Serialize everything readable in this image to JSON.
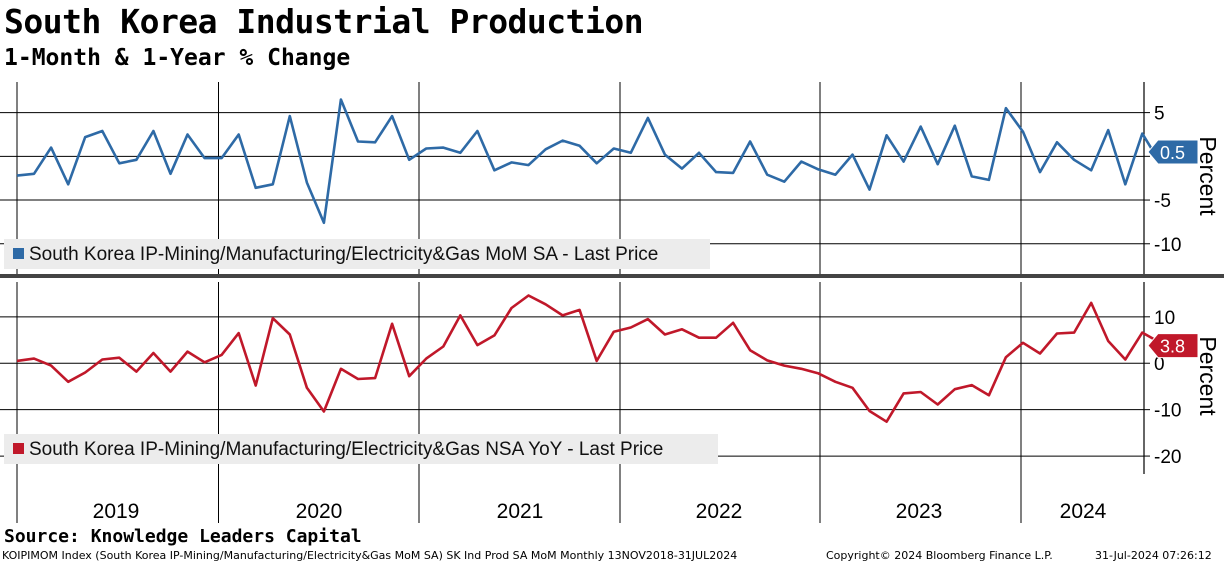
{
  "title": "South Korea Industrial Production",
  "subtitle": "1-Month & 1-Year % Change",
  "source": "Source: Knowledge Leaders Capital",
  "footer": {
    "left": "KOIPIMOM Index (South Korea IP-Mining/Manufacturing/Electricity&Gas MoM SA) SK Ind Prod SA MoM  Monthly 13NOV2018-31JUL2024",
    "middle": "Copyright© 2024 Bloomberg Finance L.P.",
    "right": "31-Jul-2024 07:26:12"
  },
  "colors": {
    "mom": "#2e6aa6",
    "yoy": "#c0182a",
    "grid": "#000000",
    "separator": "#444444"
  },
  "chart_data": [
    {
      "type": "line",
      "name": "mom",
      "title": "1-Month % Change",
      "ylabel": "Percent",
      "ylim": [
        -13,
        8.5
      ],
      "yticks": [
        5,
        0,
        -5,
        -10
      ],
      "grid": true,
      "legend": "South Korea IP-Mining/Manufacturing/Electricity&Gas MoM SA - Last Price",
      "last_value": "0.5",
      "x_start": "2018-11",
      "series": [
        {
          "name": "South Korea IP-Mining/Manufacturing/Electricity&Gas MoM SA",
          "values": [
            -2.2,
            -2.0,
            1.0,
            -3.2,
            2.2,
            2.9,
            -0.8,
            -0.4,
            2.9,
            -2.0,
            2.5,
            -0.2,
            -0.2,
            2.5,
            -3.6,
            -3.2,
            4.6,
            -3.0,
            -7.6,
            6.5,
            1.7,
            1.6,
            4.6,
            -0.4,
            0.9,
            1.0,
            0.4,
            2.9,
            -1.6,
            -0.7,
            -1.0,
            0.8,
            1.8,
            1.2,
            -0.8,
            0.9,
            0.4,
            4.4,
            0.2,
            -1.4,
            0.4,
            -1.8,
            -1.9,
            1.7,
            -2.1,
            -2.9,
            -0.6,
            -1.5,
            -2.1,
            0.2,
            -3.8,
            2.4,
            -0.6,
            3.4,
            -0.9,
            3.5,
            -2.3,
            -2.7,
            5.5,
            2.8,
            -1.8,
            1.6,
            -0.4,
            -1.6,
            3.0,
            -3.2,
            2.6,
            -0.6,
            0.5
          ]
        }
      ],
      "x_labels": []
    },
    {
      "type": "line",
      "name": "yoy",
      "title": "1-Year % Change",
      "ylabel": "Percent",
      "ylim": [
        -23,
        17.5
      ],
      "yticks": [
        10,
        0,
        -10,
        -20
      ],
      "grid": true,
      "legend": "South Korea IP-Mining/Manufacturing/Electricity&Gas NSA YoY - Last Price",
      "last_value": "3.8",
      "x_start": "2018-11",
      "series": [
        {
          "name": "South Korea IP-Mining/Manufacturing/Electricity&Gas NSA YoY",
          "values": [
            0.5,
            1.0,
            -0.5,
            -4.0,
            -2.0,
            0.8,
            1.2,
            -1.8,
            2.2,
            -1.8,
            2.5,
            0.2,
            1.8,
            6.5,
            -4.8,
            9.7,
            6.2,
            -5.3,
            -10.4,
            -1.2,
            -3.4,
            -3.2,
            8.5,
            -2.8,
            1.0,
            3.6,
            10.3,
            3.9,
            6.0,
            11.9,
            14.6,
            12.7,
            10.3,
            11.5,
            0.5,
            6.8,
            7.7,
            9.5,
            6.2,
            7.3,
            5.5,
            5.5,
            8.7,
            2.8,
            0.6,
            -0.5,
            -1.2,
            -2.2,
            -4.0,
            -5.3,
            -10.3,
            -12.6,
            -6.5,
            -6.2,
            -8.9,
            -5.6,
            -4.7,
            -6.9,
            1.3,
            4.4,
            2.1,
            6.4,
            6.6,
            13.0,
            4.8,
            0.8,
            6.6,
            4.5,
            3.8
          ]
        }
      ],
      "x_labels": [
        "2019",
        "2020",
        "2021",
        "2022",
        "2023",
        "2024"
      ]
    }
  ]
}
